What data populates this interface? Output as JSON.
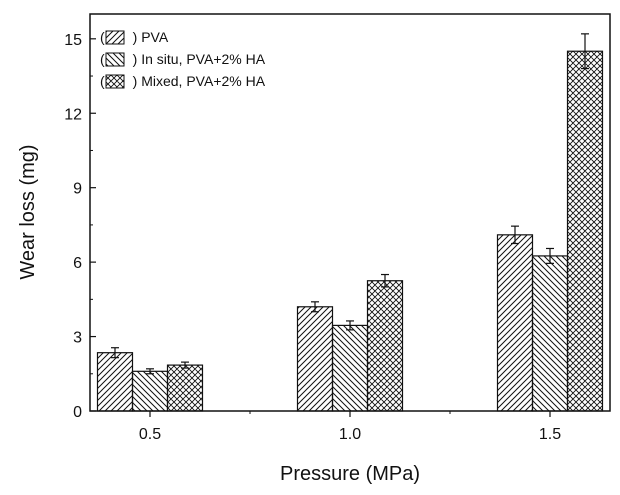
{
  "chart_data": {
    "type": "bar",
    "xlabel": "Pressure (MPa)",
    "ylabel": "Wear loss (mg)",
    "categories": [
      "0.5",
      "1.0",
      "1.5"
    ],
    "ylim": [
      0,
      16
    ],
    "yticks": [
      "0",
      "3",
      "6",
      "9",
      "12",
      "15"
    ],
    "legend_position": "top-left",
    "series": [
      {
        "name": "PVA",
        "legend_text": "(  ) PVA",
        "pattern": "diagonal-right",
        "values": [
          2.35,
          4.2,
          7.1
        ],
        "errors": [
          0.2,
          0.2,
          0.35
        ]
      },
      {
        "name": "In situ, PVA+2% HA",
        "legend_text": "(  ) In situ, PVA+2% HA",
        "pattern": "diagonal-left",
        "values": [
          1.6,
          3.45,
          6.25
        ],
        "errors": [
          0.1,
          0.18,
          0.3
        ]
      },
      {
        "name": "Mixed, PVA+2% HA",
        "legend_text": "(  ) Mixed, PVA+2% HA",
        "pattern": "crosshatch",
        "values": [
          1.85,
          5.25,
          14.5
        ],
        "errors": [
          0.12,
          0.25,
          0.7
        ]
      }
    ],
    "colors": {
      "bar_stroke": "#111111",
      "hatch": "#111111",
      "background": "#ffffff"
    }
  }
}
